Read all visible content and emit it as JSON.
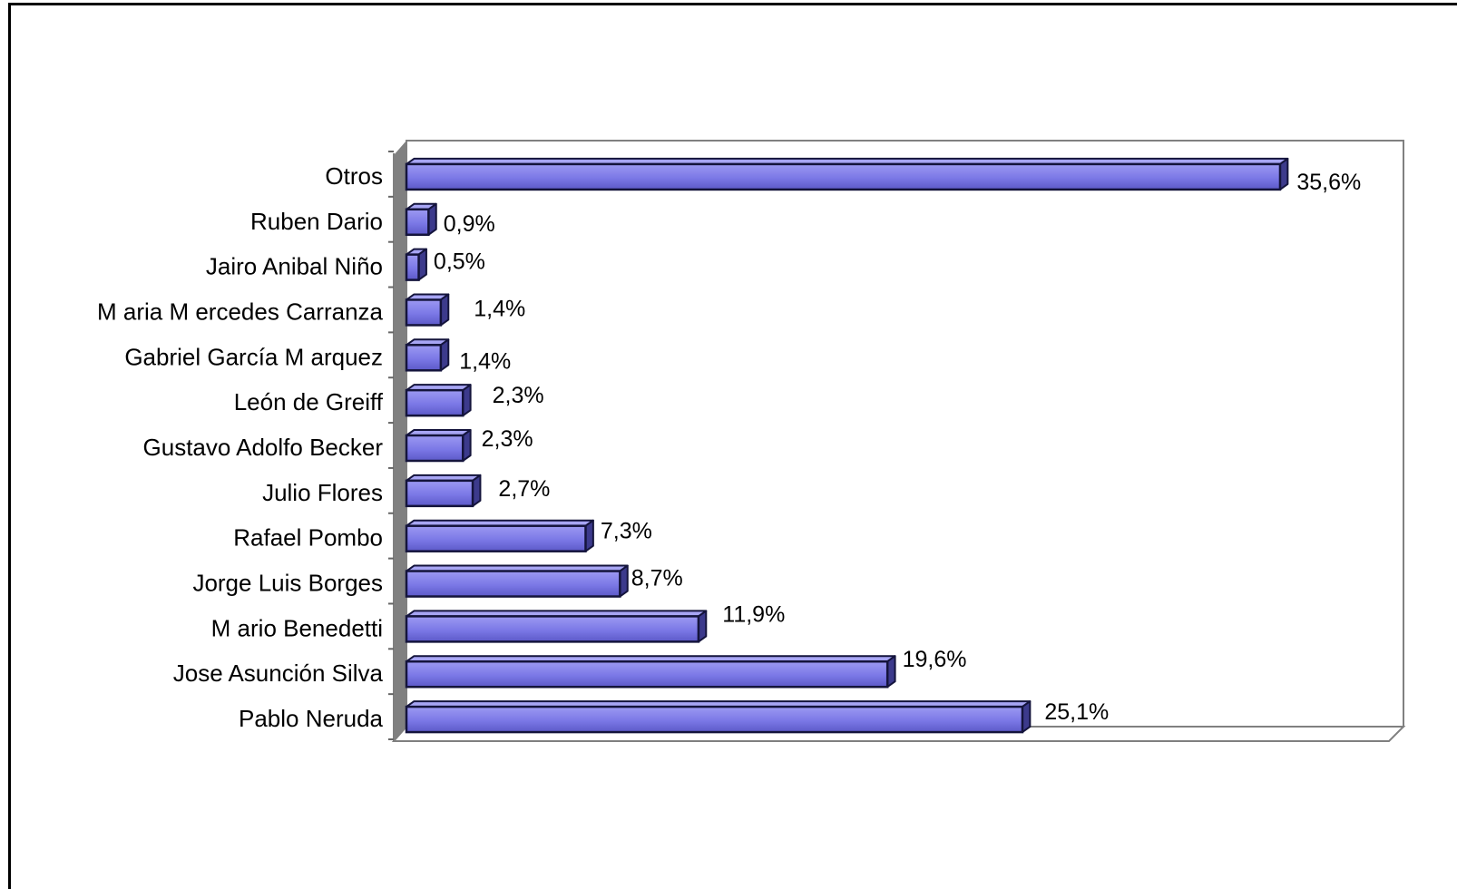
{
  "chart_data": {
    "type": "bar",
    "orientation": "horizontal",
    "style": "3d",
    "categories": [
      "Otros",
      "Ruben Dario",
      "Jairo Anibal Niño",
      "M aria M ercedes Carranza",
      "Gabriel García M arquez",
      "León de Greiff",
      "Gustavo Adolfo Becker",
      "Julio Flores",
      "Rafael Pombo",
      "Jorge Luis Borges",
      "M ario Benedetti",
      "Jose Asunción Silva",
      "Pablo Neruda"
    ],
    "values": [
      35.6,
      0.9,
      0.5,
      1.4,
      1.4,
      2.3,
      2.3,
      2.7,
      7.3,
      8.7,
      11.9,
      19.6,
      25.1
    ],
    "value_labels": [
      "35,6%",
      "0,9%",
      "0,5%",
      "1,4%",
      "1,4%",
      "2,3%",
      "2,3%",
      "2,7%",
      "7,3%",
      "8,7%",
      "11,9%",
      "19,6%",
      "25,1%"
    ],
    "xlim": [
      0,
      40
    ],
    "title": "",
    "xlabel": "",
    "ylabel": "",
    "grid": false,
    "legend": "none",
    "colors": {
      "bar_front": "#7b78e6",
      "bar_top": "#a7a5f4",
      "bar_side": "#3c3a8c",
      "bar_outline": "#14143c",
      "wall": "#808080"
    }
  }
}
